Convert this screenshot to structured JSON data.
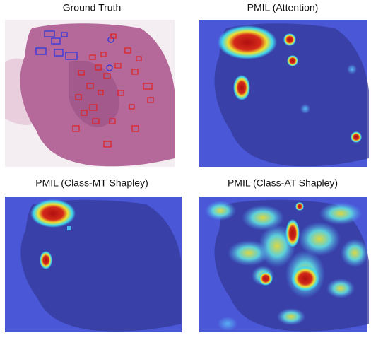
{
  "panels": [
    {
      "title": "Ground Truth"
    },
    {
      "title": "PMIL (Attention)"
    },
    {
      "title": "PMIL (Class-MT Shapley)"
    },
    {
      "title": "PMIL (Class-AT Shapley)"
    }
  ]
}
